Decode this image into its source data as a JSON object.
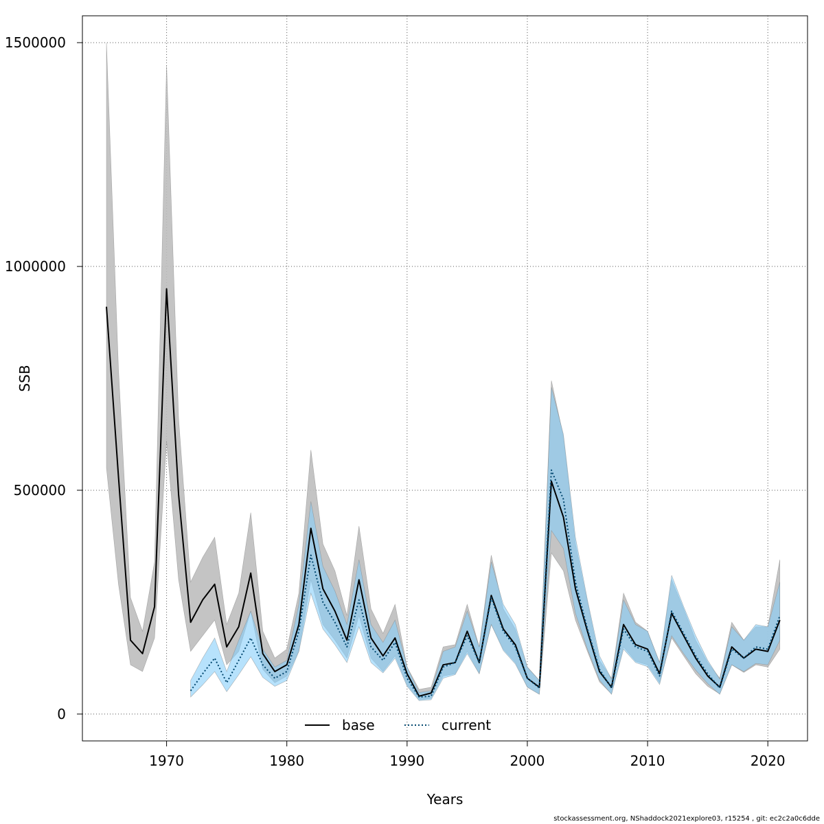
{
  "chart_data": {
    "type": "line",
    "xlabel": "Years",
    "ylabel": "SSB",
    "xlim": [
      1963,
      2023.3
    ],
    "ylim": [
      -60000,
      1560000
    ],
    "x_ticks": [
      1970,
      1980,
      1990,
      2000,
      2010,
      2020
    ],
    "x_tick_labels": [
      "1970",
      "1980",
      "1990",
      "2000",
      "2010",
      "2020"
    ],
    "y_ticks": [
      0,
      500000,
      1000000,
      1500000
    ],
    "y_tick_labels": [
      "0",
      "500000",
      "1000000",
      "1500000"
    ],
    "grid": true,
    "legend_position": "bottom",
    "colors": {
      "base_line": "#000000",
      "base_band": "#bebebe",
      "current_line": "#00466e",
      "current_band": "#87cefa",
      "grid": "#555555"
    },
    "series": [
      {
        "name": "base",
        "style": "solid",
        "x": [
          1965,
          1966,
          1967,
          1968,
          1969,
          1970,
          1971,
          1972,
          1973,
          1974,
          1975,
          1976,
          1977,
          1978,
          1979,
          1980,
          1981,
          1982,
          1983,
          1984,
          1985,
          1986,
          1987,
          1988,
          1989,
          1990,
          1991,
          1992,
          1993,
          1994,
          1995,
          1996,
          1997,
          1998,
          1999,
          2000,
          2001,
          2002,
          2003,
          2004,
          2005,
          2006,
          2007,
          2008,
          2009,
          2010,
          2011,
          2012,
          2013,
          2014,
          2015,
          2016,
          2017,
          2018,
          2019,
          2020,
          2021
        ],
        "values": [
          910000,
          530000,
          165000,
          135000,
          240000,
          950000,
          490000,
          205000,
          255000,
          290000,
          150000,
          195000,
          315000,
          135000,
          95000,
          110000,
          200000,
          415000,
          280000,
          230000,
          165000,
          300000,
          170000,
          130000,
          170000,
          90000,
          40000,
          47000,
          110000,
          115000,
          185000,
          115000,
          265000,
          190000,
          155000,
          80000,
          60000,
          520000,
          440000,
          280000,
          185000,
          95000,
          60000,
          200000,
          155000,
          145000,
          90000,
          225000,
          175000,
          125000,
          85000,
          60000,
          150000,
          125000,
          145000,
          140000,
          210000
        ],
        "lower": [
          550000,
          290000,
          110000,
          95000,
          170000,
          610000,
          300000,
          140000,
          175000,
          210000,
          110000,
          140000,
          230000,
          100000,
          70000,
          85000,
          140000,
          300000,
          200000,
          165000,
          125000,
          220000,
          125000,
          95000,
          130000,
          65000,
          32000,
          35000,
          85000,
          90000,
          140000,
          90000,
          200000,
          145000,
          115000,
          60000,
          45000,
          360000,
          320000,
          210000,
          140000,
          72000,
          45000,
          150000,
          118000,
          110000,
          70000,
          170000,
          130000,
          90000,
          62000,
          45000,
          110000,
          93000,
          110000,
          105000,
          145000
        ],
        "upper": [
          1500000,
          770000,
          260000,
          185000,
          340000,
          1450000,
          660000,
          295000,
          350000,
          395000,
          200000,
          270000,
          450000,
          185000,
          125000,
          145000,
          270000,
          590000,
          380000,
          320000,
          220000,
          420000,
          235000,
          180000,
          245000,
          105000,
          55000,
          60000,
          150000,
          155000,
          245000,
          150000,
          355000,
          235000,
          190000,
          105000,
          75000,
          745000,
          620000,
          380000,
          250000,
          120000,
          80000,
          270000,
          205000,
          185000,
          115000,
          300000,
          235000,
          165000,
          115000,
          80000,
          205000,
          165000,
          195000,
          195000,
          345000
        ]
      },
      {
        "name": "current",
        "style": "dotted",
        "x": [
          1972,
          1973,
          1974,
          1975,
          1976,
          1977,
          1978,
          1979,
          1980,
          1981,
          1982,
          1983,
          1984,
          1985,
          1986,
          1987,
          1988,
          1989,
          1990,
          1991,
          1992,
          1993,
          1994,
          1995,
          1996,
          1997,
          1998,
          1999,
          2000,
          2001,
          2002,
          2003,
          2004,
          2005,
          2006,
          2007,
          2008,
          2009,
          2010,
          2011,
          2012,
          2013,
          2014,
          2015,
          2016,
          2017,
          2018,
          2019,
          2020,
          2021
        ],
        "values": [
          52000,
          90000,
          125000,
          70000,
          120000,
          170000,
          110000,
          80000,
          95000,
          185000,
          355000,
          250000,
          205000,
          150000,
          255000,
          150000,
          120000,
          160000,
          80000,
          38000,
          40000,
          105000,
          115000,
          175000,
          115000,
          260000,
          185000,
          150000,
          80000,
          58000,
          545000,
          480000,
          295000,
          190000,
          100000,
          58000,
          190000,
          150000,
          140000,
          85000,
          230000,
          180000,
          130000,
          90000,
          58000,
          145000,
          125000,
          150000,
          145000,
          220000
        ],
        "lower": [
          38000,
          65000,
          95000,
          50000,
          88000,
          128000,
          82000,
          62000,
          75000,
          140000,
          270000,
          190000,
          155000,
          115000,
          195000,
          115000,
          92000,
          125000,
          62000,
          30000,
          32000,
          80000,
          88000,
          135000,
          90000,
          200000,
          142000,
          112000,
          60000,
          44000,
          410000,
          370000,
          225000,
          145000,
          76000,
          44000,
          145000,
          115000,
          106000,
          66000,
          175000,
          135000,
          98000,
          68000,
          44000,
          110000,
          95000,
          113000,
          110000,
          165000
        ],
        "upper": [
          75000,
          125000,
          170000,
          95000,
          165000,
          230000,
          145000,
          105000,
          120000,
          245000,
          475000,
          330000,
          275000,
          200000,
          345000,
          200000,
          160000,
          210000,
          105000,
          48000,
          52000,
          140000,
          150000,
          230000,
          150000,
          340000,
          245000,
          200000,
          105000,
          75000,
          730000,
          625000,
          395000,
          255000,
          130000,
          78000,
          255000,
          200000,
          185000,
          115000,
          310000,
          240000,
          175000,
          120000,
          78000,
          195000,
          165000,
          200000,
          195000,
          295000
        ]
      }
    ]
  },
  "footer": "stockassessment.org, NShaddock2021explore03, r15254 , git: ec2c2a0c6dde"
}
